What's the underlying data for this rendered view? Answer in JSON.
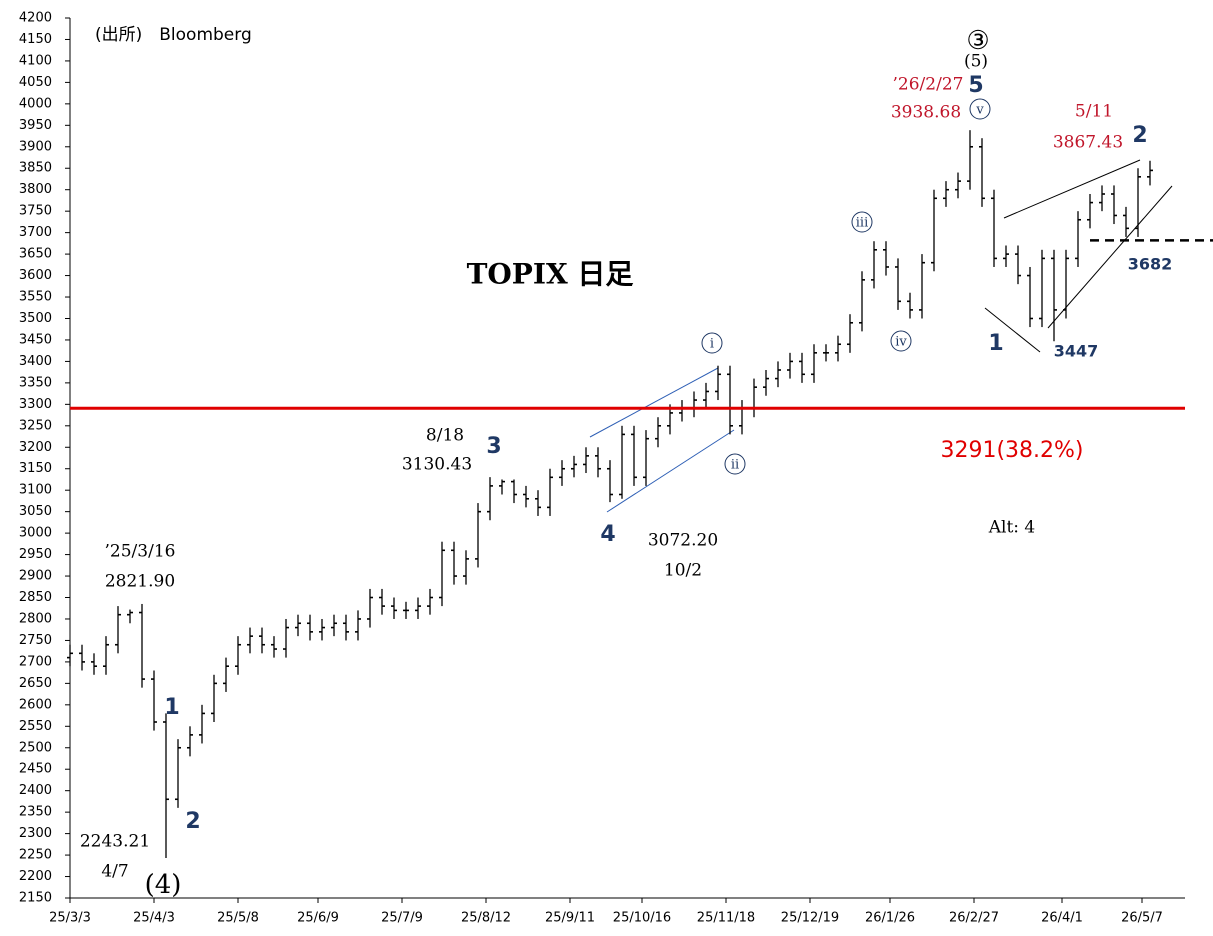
{
  "chart_data": {
    "type": "ohlc",
    "color": "#000000",
    "xlim": [
      -2,
      280
    ],
    "xticks": [
      {
        "value": 0,
        "label": "25/3/3"
      },
      {
        "value": 21,
        "label": "25/4/3"
      },
      {
        "value": 42,
        "label": "25/5/8"
      },
      {
        "value": 62,
        "label": "25/6/9"
      },
      {
        "value": 83,
        "label": "25/7/9"
      },
      {
        "value": 104,
        "label": "25/8/12"
      },
      {
        "value": 125,
        "label": "25/9/11"
      },
      {
        "value": 143,
        "label": "25/10/16"
      },
      {
        "value": 164,
        "label": "25/11/18"
      },
      {
        "value": 185,
        "label": "25/12/19"
      },
      {
        "value": 205,
        "label": "26/1/26"
      },
      {
        "value": 226,
        "label": "26/2/27"
      },
      {
        "value": 248,
        "label": "26/4/1"
      },
      {
        "value": 268,
        "label": "26/5/7"
      }
    ],
    "ylim": [
      2150,
      4200
    ],
    "yticks": [
      2150,
      2200,
      2250,
      2300,
      2350,
      2400,
      2450,
      2500,
      2550,
      2600,
      2650,
      2700,
      2750,
      2800,
      2850,
      2900,
      2950,
      3000,
      3050,
      3100,
      3150,
      3200,
      3250,
      3300,
      3350,
      3400,
      3450,
      3500,
      3550,
      3600,
      3650,
      3700,
      3750,
      3800,
      3850,
      3900,
      3950,
      4000,
      4050,
      4100,
      4150,
      4200
    ],
    "x": [
      0,
      3,
      6,
      9,
      12,
      15,
      18,
      21,
      24,
      27,
      30,
      33,
      36,
      39,
      42,
      45,
      48,
      51,
      54,
      57,
      60,
      63,
      66,
      69,
      72,
      75,
      78,
      81,
      84,
      87,
      90,
      93,
      96,
      99,
      102,
      105,
      108,
      111,
      114,
      117,
      120,
      123,
      126,
      129,
      132,
      135,
      138,
      141,
      144,
      147,
      150,
      153,
      156,
      159,
      162,
      165,
      168,
      171,
      174,
      177,
      180,
      183,
      186,
      189,
      192,
      195,
      198,
      201,
      204,
      207,
      210,
      213,
      216,
      219,
      222,
      225,
      228,
      231,
      234,
      237,
      240,
      243,
      246,
      249,
      252,
      255,
      258,
      261,
      264,
      267,
      270
    ],
    "open": [
      2710,
      2720,
      2700,
      2690,
      2740,
      2810,
      2815,
      2660,
      2560,
      2380,
      2500,
      2530,
      2580,
      2650,
      2690,
      2740,
      2760,
      2740,
      2730,
      2780,
      2790,
      2770,
      2780,
      2790,
      2770,
      2800,
      2850,
      2830,
      2820,
      2820,
      2830,
      2850,
      2960,
      2900,
      2940,
      3050,
      3110,
      3120,
      3090,
      3080,
      3060,
      3130,
      3150,
      3160,
      3180,
      3150,
      3090,
      3230,
      3130,
      3220,
      3250,
      3280,
      3290,
      3310,
      3330,
      3370,
      3250,
      3290,
      3340,
      3360,
      3380,
      3400,
      3370,
      3420,
      3420,
      3440,
      3490,
      3590,
      3660,
      3620,
      3540,
      3520,
      3630,
      3780,
      3800,
      3820,
      3900,
      3780,
      3640,
      3650,
      3600,
      3500,
      3640,
      3520,
      3640,
      3730,
      3770,
      3790,
      3740,
      3710,
      3830
    ],
    "high": [
      2740,
      2740,
      2720,
      2760,
      2830,
      2821.9,
      2835,
      2680,
      2580,
      2520,
      2550,
      2600,
      2670,
      2710,
      2760,
      2780,
      2780,
      2760,
      2800,
      2810,
      2810,
      2800,
      2810,
      2810,
      2820,
      2870,
      2870,
      2850,
      2840,
      2850,
      2870,
      2980,
      2980,
      2960,
      3070,
      3130.43,
      3125,
      3125,
      3110,
      3100,
      3150,
      3170,
      3180,
      3200,
      3200,
      3170,
      3250,
      3250,
      3240,
      3270,
      3300,
      3310,
      3330,
      3350,
      3390,
      3390,
      3310,
      3360,
      3380,
      3400,
      3420,
      3420,
      3440,
      3440,
      3460,
      3510,
      3610,
      3680,
      3680,
      3640,
      3560,
      3650,
      3800,
      3820,
      3840,
      3938.68,
      3920,
      3800,
      3670,
      3670,
      3620,
      3660,
      3660,
      3660,
      3750,
      3790,
      3810,
      3810,
      3760,
      3850,
      3867.43
    ],
    "low": [
      2690,
      2680,
      2670,
      2670,
      2720,
      2790,
      2640,
      2540,
      2243.21,
      2360,
      2480,
      2510,
      2560,
      2630,
      2670,
      2720,
      2720,
      2710,
      2710,
      2760,
      2750,
      2750,
      2760,
      2750,
      2750,
      2780,
      2810,
      2800,
      2800,
      2800,
      2810,
      2830,
      2880,
      2880,
      2920,
      3030,
      3090,
      3070,
      3060,
      3040,
      3040,
      3110,
      3130,
      3140,
      3130,
      3072.2,
      3080,
      3110,
      3110,
      3200,
      3230,
      3260,
      3270,
      3290,
      3310,
      3230,
      3230,
      3270,
      3320,
      3340,
      3360,
      3350,
      3350,
      3400,
      3400,
      3420,
      3470,
      3570,
      3600,
      3520,
      3500,
      3500,
      3610,
      3760,
      3780,
      3800,
      3760,
      3620,
      3620,
      3580,
      3480,
      3480,
      3447,
      3500,
      3620,
      3710,
      3750,
      3720,
      3690,
      3690,
      3810
    ],
    "close": [
      2720,
      2700,
      2690,
      2740,
      2810,
      2815,
      2660,
      2560,
      2380,
      2500,
      2530,
      2580,
      2650,
      2690,
      2740,
      2760,
      2740,
      2730,
      2780,
      2790,
      2770,
      2780,
      2790,
      2770,
      2800,
      2850,
      2830,
      2820,
      2820,
      2830,
      2850,
      2960,
      2900,
      2940,
      3050,
      3110,
      3120,
      3090,
      3080,
      3060,
      3130,
      3150,
      3160,
      3180,
      3150,
      3090,
      3230,
      3130,
      3220,
      3250,
      3280,
      3290,
      3310,
      3330,
      3370,
      3250,
      3290,
      3340,
      3360,
      3380,
      3400,
      3370,
      3420,
      3420,
      3440,
      3490,
      3590,
      3660,
      3620,
      3540,
      3520,
      3630,
      3780,
      3800,
      3820,
      3900,
      3780,
      3640,
      3650,
      3600,
      3500,
      3640,
      3520,
      3640,
      3730,
      3770,
      3790,
      3740,
      3710,
      3830,
      3845
    ],
    "reference_lines": [
      {
        "value": 3291,
        "label": "3291(38.2%)",
        "color": "#e00000"
      },
      {
        "value": 3682,
        "label": "3682",
        "color": "#000000"
      }
    ],
    "annotations": [
      "(出所)　Bloomberg",
      "TOPIX 日足",
      "’25/3/16",
      "2821.90",
      "1",
      "2",
      "2243.21",
      "4/7",
      "(4)",
      "8/18",
      "3130.43",
      "3",
      "4",
      "3072.20",
      "10/2",
      "i",
      "ii",
      "iii",
      "iv",
      "v",
      "③",
      "(5)",
      "5",
      "’26/2/27",
      "3938.68",
      "5/11",
      "3867.43",
      "2",
      "1",
      "3447",
      "Alt: 4"
    ]
  }
}
